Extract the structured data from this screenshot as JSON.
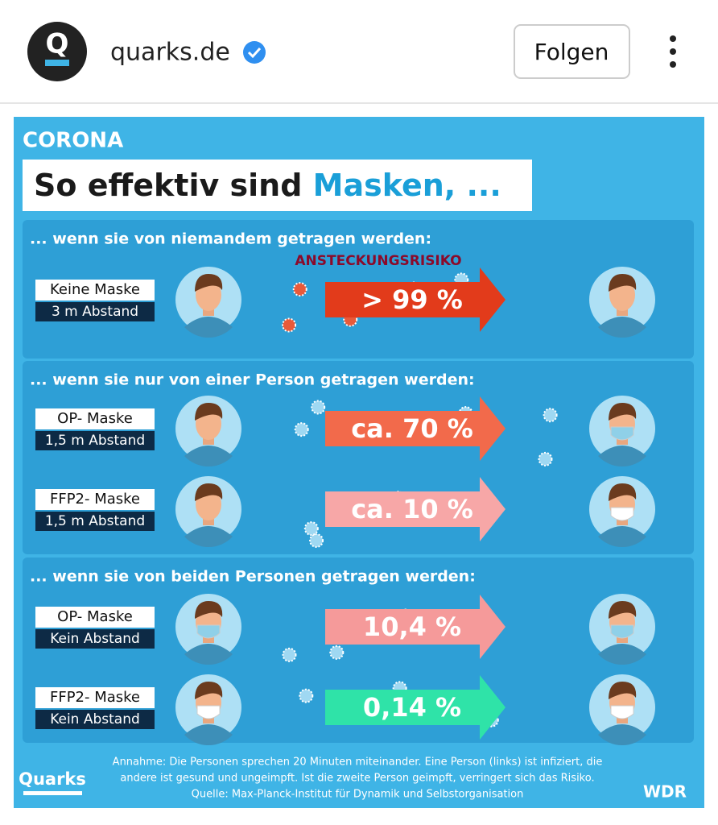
{
  "header": {
    "account": "quarks.de",
    "button": "Folgen"
  },
  "infographic": {
    "kicker": "CORONA",
    "title": "So effektiv sind ",
    "title_highlight": "Masken, ...",
    "sections": [
      {
        "heading": "... wenn sie von niemandem getragen werden:",
        "risk_label": "ANSTECKUNGSRISIKO",
        "rows": [
          {
            "mask": "Keine Maske",
            "distance": "3 m Abstand",
            "risk": "> 99 %"
          }
        ]
      },
      {
        "heading": "... wenn sie nur von einer Person getragen werden:",
        "rows": [
          {
            "mask": "OP- Maske",
            "distance": "1,5 m Abstand",
            "risk": "ca. 70 %"
          },
          {
            "mask": "FFP2- Maske",
            "distance": "1,5 m Abstand",
            "risk": "ca. 10 %"
          }
        ]
      },
      {
        "heading": "... wenn sie von beiden Personen getragen werden:",
        "rows": [
          {
            "mask": "OP- Maske",
            "distance": "Kein Abstand",
            "risk": "10,4 %"
          },
          {
            "mask": "FFP2- Maske",
            "distance": "Kein Abstand",
            "risk": "0,14 %"
          }
        ]
      }
    ],
    "footnote": [
      "Annahme: Die Personen sprechen 20 Minuten miteinander. Eine Person (links) ist infiziert, die",
      "andere ist gesund und ungeimpft. Ist die zweite Person geimpft, verringert sich das Risiko.",
      "Quelle: Max-Planck-Institut für Dynamik und Selbstorganisation"
    ],
    "logo_left": "Quarks",
    "logo_right": "WDR"
  }
}
